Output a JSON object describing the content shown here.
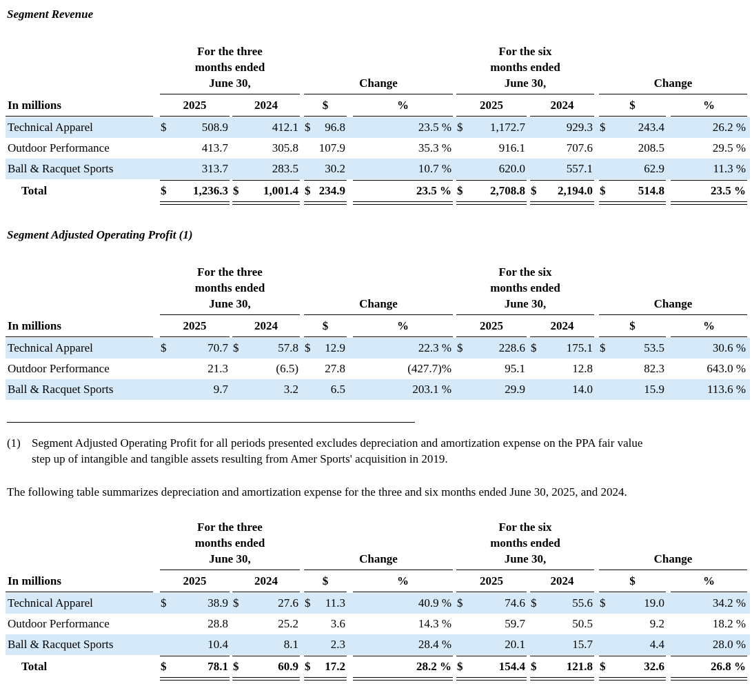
{
  "sections": {
    "revenue_title": "Segment Revenue",
    "profit_title": "Segment Adjusted Operating Profit (1)"
  },
  "footnote": {
    "marker": "(1)",
    "line1": "Segment Adjusted Operating Profit for all periods presented excludes depreciation and amortization expense on the PPA fair value",
    "line2": "step up of intangible and tangible assets resulting from Amer Sports' acquisition in 2019."
  },
  "paragraph": "The following table summarizes depreciation and amortization expense for the three and six months ended June 30, 2025, and 2024.",
  "header": {
    "three": [
      "For the three",
      "months ended",
      "June 30,"
    ],
    "six": [
      "For the six",
      "months ended",
      "June 30,"
    ],
    "change": "Change",
    "label": "In millions",
    "cols": [
      "2025",
      "2024",
      "$",
      "%",
      "2025",
      "2024",
      "$",
      "%"
    ]
  },
  "tables": [
    {
      "name": "segment-revenue",
      "rows": [
        {
          "label": "Technical Apparel",
          "cells": [
            {
              "cur": "$",
              "val": "508.9"
            },
            {
              "cur": "",
              "val": "412.1"
            },
            {
              "cur": "$",
              "val": "96.8"
            },
            {
              "cur": "",
              "val": "23.5 %"
            },
            {
              "cur": "$",
              "val": "1,172.7"
            },
            {
              "cur": "",
              "val": "929.3"
            },
            {
              "cur": "$",
              "val": "243.4"
            },
            {
              "cur": "",
              "val": "26.2 %"
            }
          ]
        },
        {
          "label": "Outdoor Performance",
          "cells": [
            {
              "cur": "",
              "val": "413.7"
            },
            {
              "cur": "",
              "val": "305.8"
            },
            {
              "cur": "",
              "val": "107.9"
            },
            {
              "cur": "",
              "val": "35.3 %"
            },
            {
              "cur": "",
              "val": "916.1"
            },
            {
              "cur": "",
              "val": "707.6"
            },
            {
              "cur": "",
              "val": "208.5"
            },
            {
              "cur": "",
              "val": "29.5 %"
            }
          ]
        },
        {
          "label": "Ball & Racquet Sports",
          "cells": [
            {
              "cur": "",
              "val": "313.7"
            },
            {
              "cur": "",
              "val": "283.5"
            },
            {
              "cur": "",
              "val": "30.2"
            },
            {
              "cur": "",
              "val": "10.7 %"
            },
            {
              "cur": "",
              "val": "620.0"
            },
            {
              "cur": "",
              "val": "557.1"
            },
            {
              "cur": "",
              "val": "62.9"
            },
            {
              "cur": "",
              "val": "11.3 %"
            }
          ]
        }
      ],
      "total": {
        "label": "Total",
        "cells": [
          {
            "cur": "$",
            "val": "1,236.3"
          },
          {
            "cur": "$",
            "val": "1,001.4"
          },
          {
            "cur": "$",
            "val": "234.9"
          },
          {
            "cur": "",
            "val": "23.5 %"
          },
          {
            "cur": "$",
            "val": "2,708.8"
          },
          {
            "cur": "$",
            "val": "2,194.0"
          },
          {
            "cur": "$",
            "val": "514.8"
          },
          {
            "cur": "",
            "val": "23.5 %"
          }
        ]
      }
    },
    {
      "name": "segment-profit",
      "rows": [
        {
          "label": "Technical Apparel",
          "cells": [
            {
              "cur": "$",
              "val": "70.7"
            },
            {
              "cur": "$",
              "val": "57.8"
            },
            {
              "cur": "$",
              "val": "12.9"
            },
            {
              "cur": "",
              "val": "22.3 %"
            },
            {
              "cur": "$",
              "val": "228.6"
            },
            {
              "cur": "$",
              "val": "175.1"
            },
            {
              "cur": "$",
              "val": "53.5"
            },
            {
              "cur": "",
              "val": "30.6 %"
            }
          ]
        },
        {
          "label": "Outdoor Performance",
          "cells": [
            {
              "cur": "",
              "val": "21.3"
            },
            {
              "cur": "",
              "val": "(6.5)"
            },
            {
              "cur": "",
              "val": "27.8"
            },
            {
              "cur": "",
              "val": "(427.7)%"
            },
            {
              "cur": "",
              "val": "95.1"
            },
            {
              "cur": "",
              "val": "12.8"
            },
            {
              "cur": "",
              "val": "82.3"
            },
            {
              "cur": "",
              "val": "643.0 %"
            }
          ]
        },
        {
          "label": "Ball & Racquet Sports",
          "cells": [
            {
              "cur": "",
              "val": "9.7"
            },
            {
              "cur": "",
              "val": "3.2"
            },
            {
              "cur": "",
              "val": "6.5"
            },
            {
              "cur": "",
              "val": "203.1 %"
            },
            {
              "cur": "",
              "val": "29.9"
            },
            {
              "cur": "",
              "val": "14.0"
            },
            {
              "cur": "",
              "val": "15.9"
            },
            {
              "cur": "",
              "val": "113.6 %"
            }
          ]
        }
      ]
    },
    {
      "name": "depreciation-amortization",
      "rows": [
        {
          "label": "Technical Apparel",
          "cells": [
            {
              "cur": "$",
              "val": "38.9"
            },
            {
              "cur": "$",
              "val": "27.6"
            },
            {
              "cur": "$",
              "val": "11.3"
            },
            {
              "cur": "",
              "val": "40.9 %"
            },
            {
              "cur": "$",
              "val": "74.6"
            },
            {
              "cur": "$",
              "val": "55.6"
            },
            {
              "cur": "$",
              "val": "19.0"
            },
            {
              "cur": "",
              "val": "34.2 %"
            }
          ]
        },
        {
          "label": "Outdoor Performance",
          "cells": [
            {
              "cur": "",
              "val": "28.8"
            },
            {
              "cur": "",
              "val": "25.2"
            },
            {
              "cur": "",
              "val": "3.6"
            },
            {
              "cur": "",
              "val": "14.3 %"
            },
            {
              "cur": "",
              "val": "59.7"
            },
            {
              "cur": "",
              "val": "50.5"
            },
            {
              "cur": "",
              "val": "9.2"
            },
            {
              "cur": "",
              "val": "18.2 %"
            }
          ]
        },
        {
          "label": "Ball & Racquet Sports",
          "cells": [
            {
              "cur": "",
              "val": "10.4"
            },
            {
              "cur": "",
              "val": "8.1"
            },
            {
              "cur": "",
              "val": "2.3"
            },
            {
              "cur": "",
              "val": "28.4 %"
            },
            {
              "cur": "",
              "val": "20.1"
            },
            {
              "cur": "",
              "val": "15.7"
            },
            {
              "cur": "",
              "val": "4.4"
            },
            {
              "cur": "",
              "val": "28.0 %"
            }
          ]
        }
      ],
      "total": {
        "label": "Total",
        "cells": [
          {
            "cur": "$",
            "val": "78.1"
          },
          {
            "cur": "$",
            "val": "60.9"
          },
          {
            "cur": "$",
            "val": "17.2"
          },
          {
            "cur": "",
            "val": "28.2 %"
          },
          {
            "cur": "$",
            "val": "154.4"
          },
          {
            "cur": "$",
            "val": "121.8"
          },
          {
            "cur": "$",
            "val": "32.6"
          },
          {
            "cur": "",
            "val": "26.8 %"
          }
        ]
      }
    }
  ]
}
